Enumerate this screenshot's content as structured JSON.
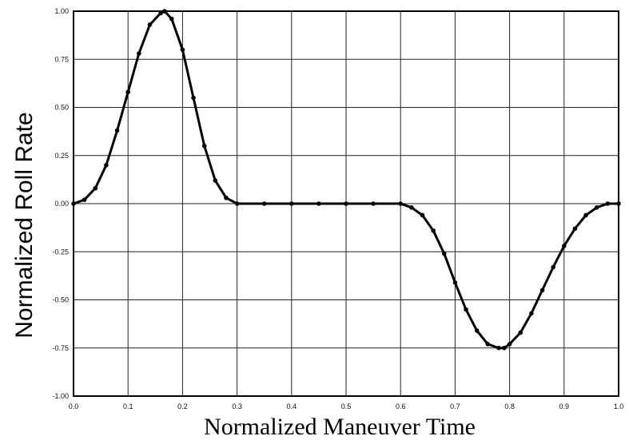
{
  "chart_data": {
    "type": "line",
    "title": "",
    "xlabel": "Normalized Maneuver Time",
    "ylabel": "Normalized Roll Rate",
    "xlim": [
      0.0,
      1.0
    ],
    "ylim": [
      -1.0,
      1.0
    ],
    "grid": true,
    "x_ticks": [
      "0.0",
      "0.1",
      "0.2",
      "0.3",
      "0.4",
      "0.5",
      "0.6",
      "0.7",
      "0.8",
      "0.9",
      "1.0"
    ],
    "y_ticks": [
      "1.00",
      "0.75",
      "0.50",
      "0.25",
      "0.00",
      "-0.25",
      "-0.50",
      "-0.75",
      "-1.00"
    ],
    "series": [
      {
        "x": [
          0.0,
          0.02,
          0.04,
          0.06,
          0.08,
          0.1,
          0.12,
          0.14,
          0.16,
          0.167,
          0.18,
          0.2,
          0.22,
          0.24,
          0.26,
          0.28,
          0.3,
          0.35,
          0.4,
          0.45,
          0.5,
          0.55,
          0.6,
          0.62,
          0.64,
          0.66,
          0.68,
          0.7,
          0.72,
          0.74,
          0.76,
          0.78,
          0.79,
          0.8,
          0.82,
          0.84,
          0.86,
          0.88,
          0.9,
          0.92,
          0.94,
          0.96,
          0.98,
          1.0
        ],
        "y": [
          0.0,
          0.02,
          0.08,
          0.2,
          0.38,
          0.58,
          0.78,
          0.93,
          0.99,
          1.0,
          0.96,
          0.8,
          0.55,
          0.3,
          0.12,
          0.03,
          0.0,
          0.0,
          0.0,
          0.0,
          0.0,
          0.0,
          0.0,
          -0.02,
          -0.06,
          -0.14,
          -0.26,
          -0.41,
          -0.55,
          -0.66,
          -0.73,
          -0.75,
          -0.75,
          -0.73,
          -0.67,
          -0.57,
          -0.45,
          -0.33,
          -0.22,
          -0.13,
          -0.06,
          -0.02,
          0.0,
          0.0
        ]
      }
    ]
  }
}
